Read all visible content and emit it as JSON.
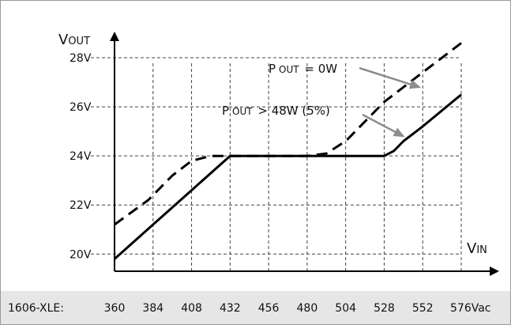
{
  "chart_data": {
    "type": "line",
    "y_axis": {
      "title_main": "V",
      "title_sub": "OUT",
      "ticks": [
        20,
        22,
        24,
        26,
        28
      ],
      "tick_labels": [
        "20V",
        "22V",
        "24V",
        "26V",
        "28V"
      ],
      "ylim": [
        19.3,
        29
      ]
    },
    "x_axis": {
      "title_main": "V",
      "title_sub": "IN",
      "ticks": [
        360,
        384,
        408,
        432,
        456,
        480,
        504,
        528,
        552,
        576
      ],
      "tick_labels": [
        "360",
        "384",
        "408",
        "432",
        "456",
        "480",
        "504",
        "528",
        "552",
        "576Vac"
      ],
      "row_label": "1606-XLE:",
      "xlim": [
        360,
        576
      ]
    },
    "grid": true,
    "series": [
      {
        "style": "dashed",
        "points": [
          [
            360,
            21.2
          ],
          [
            381,
            22.2
          ],
          [
            396,
            23.2
          ],
          [
            408,
            23.8
          ],
          [
            420,
            24.0
          ],
          [
            480,
            24.0
          ],
          [
            492,
            24.1
          ],
          [
            504,
            24.6
          ],
          [
            516,
            25.4
          ],
          [
            528,
            26.2
          ],
          [
            552,
            27.4
          ],
          [
            576,
            28.6
          ]
        ]
      },
      {
        "style": "solid",
        "points": [
          [
            360,
            19.8
          ],
          [
            384,
            21.2
          ],
          [
            408,
            22.6
          ],
          [
            432,
            24.0
          ],
          [
            528,
            24.0
          ],
          [
            534,
            24.2
          ],
          [
            540,
            24.6
          ],
          [
            552,
            25.2
          ],
          [
            576,
            26.5
          ]
        ]
      }
    ],
    "annotations": [
      {
        "main": "P",
        "sub": "OUT",
        "rest": " = 0W",
        "points_to": [
          550,
          26.8
        ]
      },
      {
        "main": "P",
        "sub": "OUT",
        "rest": " > 48W (5%)",
        "points_to": [
          540,
          24.8
        ]
      }
    ],
    "colors": {
      "line": "#000000",
      "grid": "#444444",
      "arrow": "#8c8c8c",
      "footer_bg": "#e6e6e6"
    }
  }
}
